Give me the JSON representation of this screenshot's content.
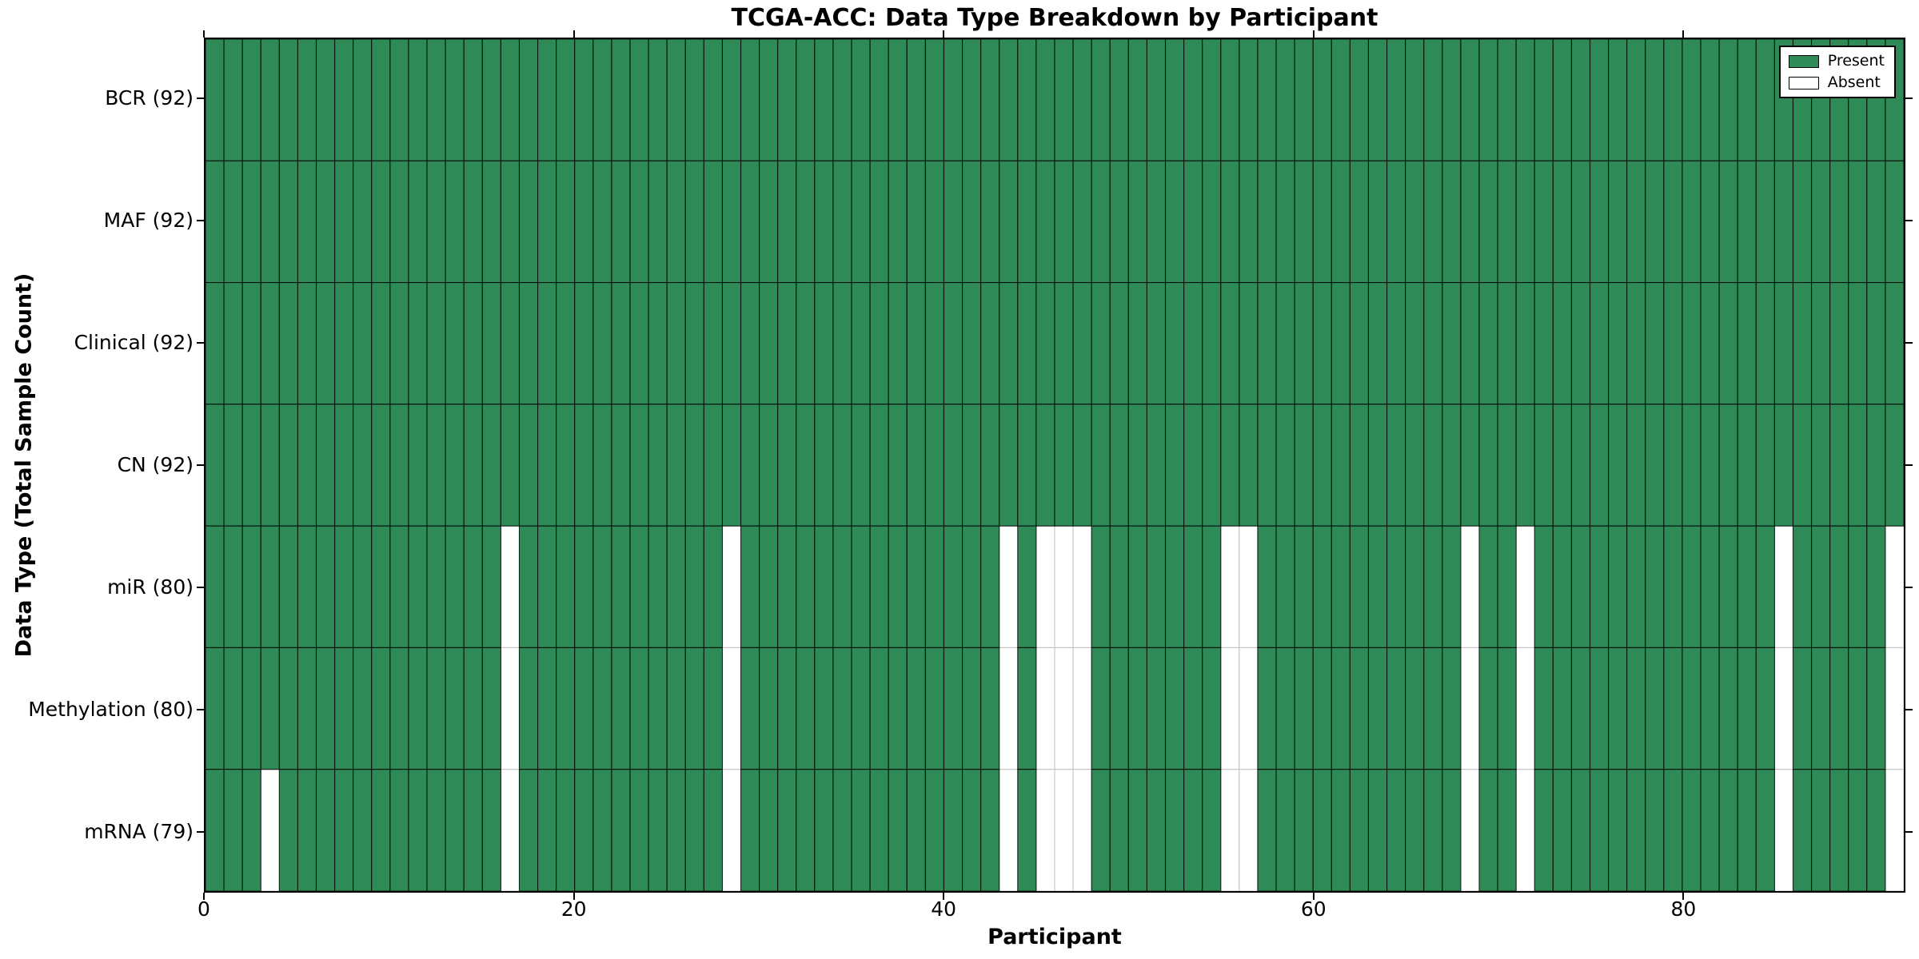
{
  "chart_data": {
    "type": "heatmap",
    "title": "TCGA-ACC: Data Type Breakdown by Participant",
    "xlabel": "Participant",
    "ylabel": "Data Type (Total Sample Count)",
    "x_range": [
      0,
      92
    ],
    "n_participants": 92,
    "x_ticks": [
      0,
      20,
      40,
      60,
      80
    ],
    "grid": false,
    "legend_position": "upper right",
    "legend": [
      {
        "label": "Present",
        "color": "#2E8B57"
      },
      {
        "label": "Absent",
        "color": "#FFFFFF"
      }
    ],
    "colors": {
      "present": "#2E8B57",
      "absent": "#FFFFFF",
      "present_edge": "#000000",
      "absent_edge": "#BFBFBF"
    },
    "rows": [
      {
        "label": "BCR (92)",
        "data_type": "BCR",
        "total_samples": 92,
        "absent_participants": []
      },
      {
        "label": "MAF (92)",
        "data_type": "MAF",
        "total_samples": 92,
        "absent_participants": []
      },
      {
        "label": "Clinical (92)",
        "data_type": "Clinical",
        "total_samples": 92,
        "absent_participants": []
      },
      {
        "label": "CN (92)",
        "data_type": "CN",
        "total_samples": 92,
        "absent_participants": []
      },
      {
        "label": "miR (80)",
        "data_type": "miR",
        "total_samples": 80,
        "absent_participants": [
          16,
          28,
          43,
          45,
          46,
          47,
          55,
          56,
          68,
          71,
          85,
          91
        ]
      },
      {
        "label": "Methylation (80)",
        "data_type": "Methylation",
        "total_samples": 80,
        "absent_participants": [
          16,
          28,
          43,
          45,
          46,
          47,
          55,
          56,
          68,
          71,
          85,
          91
        ]
      },
      {
        "label": "mRNA (79)",
        "data_type": "mRNA",
        "total_samples": 79,
        "absent_participants": [
          3,
          16,
          28,
          43,
          45,
          46,
          47,
          55,
          56,
          68,
          71,
          85,
          91
        ]
      }
    ]
  }
}
